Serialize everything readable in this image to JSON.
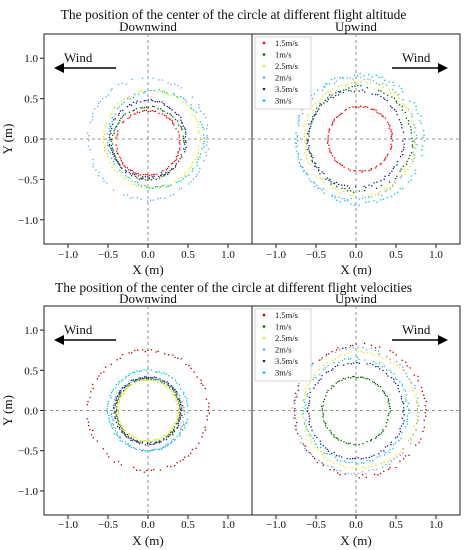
{
  "chart_data": [
    {
      "type": "scatter",
      "title": "The position of the center of the circle at different flight altitude",
      "panels": [
        {
          "name": "Downwind",
          "wind_label": "Wind",
          "wind_direction": "left",
          "xlim": [
            -1.3,
            1.3
          ],
          "ylim": [
            -1.3,
            1.3
          ],
          "x_ticks": [
            "−1.0",
            "−0.5",
            "0.0",
            "0.5",
            "1.0"
          ],
          "y_ticks": [
            "1.0",
            "0.5",
            "0.0",
            "−0.5",
            "−1.0"
          ],
          "xlabel": "X (m)",
          "ylabel": "Y (m)",
          "series": [
            {
              "cx": 0.0,
              "cy": -0.05,
              "r": 0.4,
              "color": "#ff0000"
            },
            {
              "cx": 0.0,
              "cy": -0.05,
              "r": 0.45,
              "color": "#006400"
            },
            {
              "cx": 0.05,
              "cy": 0.0,
              "r": 0.6,
              "color": "#e6e600"
            },
            {
              "cx": 0.0,
              "cy": 0.0,
              "r": 0.75,
              "color": "#6aa8e8"
            },
            {
              "cx": 0.0,
              "cy": 0.0,
              "r": 0.48,
              "color": "#1c1c8c"
            },
            {
              "cx": 0.1,
              "cy": 0.0,
              "r": 0.6,
              "color": "#00cccc"
            }
          ]
        },
        {
          "name": "Upwind",
          "wind_label": "Wind",
          "wind_direction": "right",
          "xlim": [
            -1.3,
            1.3
          ],
          "ylim": [
            -1.3,
            1.3
          ],
          "x_ticks": [
            "−1.0",
            "−0.5",
            "0.0",
            "0.5",
            "1.0"
          ],
          "xlabel": "X (m)",
          "legend": [
            "1.5m/s",
            "1m/s",
            "2.5m/s",
            "2m/s",
            "3.5m/s",
            "3m/s"
          ],
          "legend_position": "top-left",
          "series": [
            {
              "name": "1.5m/s",
              "cx": 0.05,
              "cy": 0.0,
              "r": 0.4,
              "color": "#ff0000"
            },
            {
              "name": "1m/s",
              "cx": 0.05,
              "cy": 0.0,
              "r": 0.65,
              "color": "#006400"
            },
            {
              "name": "2.5m/s",
              "cx": 0.05,
              "cy": 0.0,
              "r": 0.7,
              "color": "#e6e600"
            },
            {
              "name": "2m/s",
              "cx": 0.0,
              "cy": 0.0,
              "r": 0.75,
              "color": "#6aa8e8"
            },
            {
              "name": "3.5m/s",
              "cx": 0.0,
              "cy": 0.0,
              "r": 0.6,
              "color": "#1c1c8c"
            },
            {
              "name": "3m/s",
              "cx": 0.05,
              "cy": 0.0,
              "r": 0.8,
              "color": "#00cccc"
            }
          ]
        }
      ]
    },
    {
      "type": "scatter",
      "title": "The position of the center of the circle at different flight velocities",
      "panels": [
        {
          "name": "Downwind",
          "wind_label": "Wind",
          "wind_direction": "left",
          "xlim": [
            -1.3,
            1.3
          ],
          "ylim": [
            -1.3,
            1.3
          ],
          "x_ticks": [
            "−1.0",
            "−0.5",
            "0.0",
            "0.5",
            "1.0"
          ],
          "y_ticks": [
            "1.0",
            "0.5",
            "0.0",
            "−0.5",
            "−1.0"
          ],
          "xlabel": "X (m)",
          "ylabel": "Y (m)",
          "series": [
            {
              "cx": 0.0,
              "cy": 0.0,
              "r": 0.75,
              "color": "#c00000"
            },
            {
              "cx": 0.0,
              "cy": 0.0,
              "r": 0.4,
              "color": "#006400"
            },
            {
              "cx": 0.0,
              "cy": 0.0,
              "r": 0.38,
              "color": "#e6e600"
            },
            {
              "cx": 0.0,
              "cy": -0.05,
              "r": 0.45,
              "color": "#6aa8e8"
            },
            {
              "cx": 0.0,
              "cy": 0.0,
              "r": 0.42,
              "color": "#1c1c8c"
            },
            {
              "cx": 0.0,
              "cy": 0.0,
              "r": 0.5,
              "color": "#00cccc"
            }
          ]
        },
        {
          "name": "Upwind",
          "wind_label": "Wind",
          "wind_direction": "right",
          "xlim": [
            -1.3,
            1.3
          ],
          "ylim": [
            -1.3,
            1.3
          ],
          "x_ticks": [
            "−1.0",
            "−0.5",
            "0.0",
            "0.5",
            "1.0"
          ],
          "xlabel": "X (m)",
          "legend": [
            "1.5m/s",
            "1m/s",
            "2.5m/s",
            "2m/s",
            "3.5m/s",
            "3m/s"
          ],
          "legend_position": "top-left",
          "series": [
            {
              "name": "1.5m/s",
              "cx": 0.05,
              "cy": 0.0,
              "r": 0.82,
              "color": "#c00000"
            },
            {
              "name": "1m/s",
              "cx": 0.0,
              "cy": 0.0,
              "r": 0.42,
              "color": "#006400"
            },
            {
              "name": "2.5m/s",
              "cx": 0.05,
              "cy": 0.0,
              "r": 0.72,
              "color": "#e6e600"
            },
            {
              "name": "2m/s",
              "cx": 0.0,
              "cy": 0.0,
              "r": 0.78,
              "color": "#6aa8e8"
            },
            {
              "name": "3.5m/s",
              "cx": 0.0,
              "cy": 0.0,
              "r": 0.6,
              "color": "#1c1c8c"
            },
            {
              "name": "3m/s",
              "cx": 0.0,
              "cy": 0.0,
              "r": 0.65,
              "color": "#00cccc"
            }
          ]
        }
      ]
    }
  ]
}
